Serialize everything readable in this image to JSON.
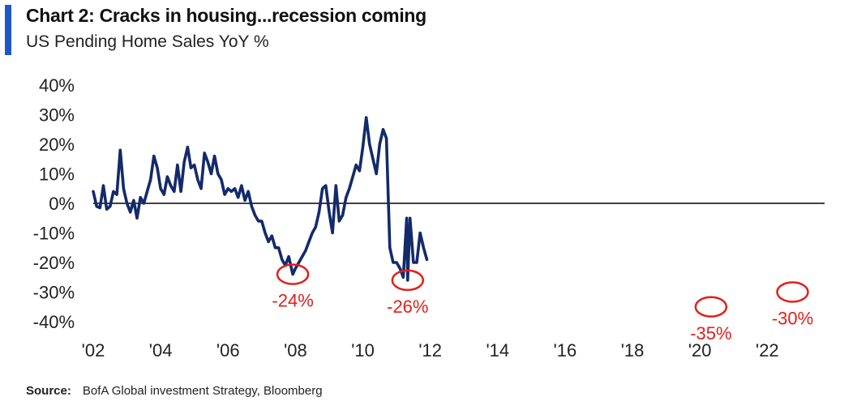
{
  "header": {
    "title": "Chart 2: Cracks in housing...recession coming",
    "subtitle": "US Pending Home Sales YoY %"
  },
  "footer": {
    "source_label": "Source:",
    "source_text": "BofA Global investment Strategy, Bloomberg"
  },
  "chart_data": {
    "type": "line",
    "title": "Chart 2: Cracks in housing...recession coming",
    "subtitle": "US Pending Home Sales YoY %",
    "xlabel": "",
    "ylabel": "",
    "xlim": [
      2002.0,
      2023.7
    ],
    "ylim": [
      -40,
      40
    ],
    "grid": false,
    "zero_line": true,
    "line_color": "#132a6b",
    "annotation_color": "#e0201b",
    "x_ticks": [
      {
        "value": 2002,
        "label": "'02"
      },
      {
        "value": 2004,
        "label": "'04"
      },
      {
        "value": 2006,
        "label": "'06"
      },
      {
        "value": 2008,
        "label": "'08"
      },
      {
        "value": 2010,
        "label": "'10"
      },
      {
        "value": 2012,
        "label": "'12"
      },
      {
        "value": 2014,
        "label": "'14"
      },
      {
        "value": 2016,
        "label": "'16"
      },
      {
        "value": 2018,
        "label": "'18"
      },
      {
        "value": 2020,
        "label": "'20"
      },
      {
        "value": 2022,
        "label": "'22"
      }
    ],
    "y_ticks": [
      {
        "value": 40,
        "label": "40%"
      },
      {
        "value": 30,
        "label": "30%"
      },
      {
        "value": 20,
        "label": "20%"
      },
      {
        "value": 10,
        "label": "10%"
      },
      {
        "value": 0,
        "label": "0%"
      },
      {
        "value": -10,
        "label": "-10%"
      },
      {
        "value": -20,
        "label": "-20%"
      },
      {
        "value": -30,
        "label": "-30%"
      },
      {
        "value": -40,
        "label": "-40%"
      }
    ],
    "annotations": [
      {
        "x": 2007.92,
        "y": -24,
        "label": "-24%"
      },
      {
        "x": 2011.33,
        "y": -26,
        "label": "-26%"
      },
      {
        "x": 2020.33,
        "y": -35,
        "label": "-35%"
      },
      {
        "x": 2022.75,
        "y": -30,
        "label": "-30%"
      }
    ],
    "series": [
      {
        "values": [
          [
            2002.0,
            4
          ],
          [
            2002.1,
            -1
          ],
          [
            2002.2,
            -1.5
          ],
          [
            2002.3,
            6
          ],
          [
            2002.4,
            -2
          ],
          [
            2002.5,
            -1
          ],
          [
            2002.6,
            4
          ],
          [
            2002.7,
            3
          ],
          [
            2002.8,
            18
          ],
          [
            2002.9,
            5
          ],
          [
            2003.0,
            0
          ],
          [
            2003.1,
            -3
          ],
          [
            2003.2,
            1
          ],
          [
            2003.3,
            -5
          ],
          [
            2003.4,
            2
          ],
          [
            2003.5,
            0
          ],
          [
            2003.6,
            4
          ],
          [
            2003.7,
            8
          ],
          [
            2003.8,
            16
          ],
          [
            2003.9,
            12
          ],
          [
            2004.0,
            5
          ],
          [
            2004.1,
            3
          ],
          [
            2004.2,
            9
          ],
          [
            2004.3,
            6
          ],
          [
            2004.4,
            4
          ],
          [
            2004.5,
            13
          ],
          [
            2004.6,
            4
          ],
          [
            2004.7,
            14
          ],
          [
            2004.8,
            19
          ],
          [
            2004.9,
            12
          ],
          [
            2005.0,
            13
          ],
          [
            2005.1,
            8
          ],
          [
            2005.2,
            5
          ],
          [
            2005.3,
            17
          ],
          [
            2005.4,
            14
          ],
          [
            2005.5,
            10
          ],
          [
            2005.6,
            16
          ],
          [
            2005.7,
            10
          ],
          [
            2005.8,
            8
          ],
          [
            2005.9,
            3
          ],
          [
            2006.0,
            5
          ],
          [
            2006.1,
            4
          ],
          [
            2006.2,
            5
          ],
          [
            2006.3,
            2
          ],
          [
            2006.4,
            6
          ],
          [
            2006.5,
            1
          ],
          [
            2006.6,
            4
          ],
          [
            2006.7,
            -1
          ],
          [
            2006.8,
            -4
          ],
          [
            2006.9,
            -6
          ],
          [
            2007.0,
            -6
          ],
          [
            2007.1,
            -10
          ],
          [
            2007.2,
            -13
          ],
          [
            2007.3,
            -11
          ],
          [
            2007.4,
            -15
          ],
          [
            2007.5,
            -15
          ],
          [
            2007.6,
            -19
          ],
          [
            2007.7,
            -21
          ],
          [
            2007.8,
            -18
          ],
          [
            2007.92,
            -24
          ],
          [
            2008.0,
            -22
          ],
          [
            2008.1,
            -20
          ],
          [
            2008.2,
            -18
          ],
          [
            2008.3,
            -16
          ],
          [
            2008.4,
            -13
          ],
          [
            2008.5,
            -10
          ],
          [
            2008.6,
            -8
          ],
          [
            2008.7,
            -3
          ],
          [
            2008.8,
            5
          ],
          [
            2008.9,
            6
          ],
          [
            2009.0,
            -3
          ],
          [
            2009.1,
            -10
          ],
          [
            2009.2,
            6
          ],
          [
            2009.3,
            -6
          ],
          [
            2009.4,
            -4
          ],
          [
            2009.5,
            2
          ],
          [
            2009.6,
            5
          ],
          [
            2009.7,
            9
          ],
          [
            2009.8,
            13
          ],
          [
            2009.9,
            11
          ],
          [
            2010.0,
            19
          ],
          [
            2010.1,
            29
          ],
          [
            2010.2,
            20
          ],
          [
            2010.3,
            15
          ],
          [
            2010.4,
            10
          ],
          [
            2010.5,
            20
          ],
          [
            2010.6,
            25
          ],
          [
            2010.7,
            22
          ],
          [
            2010.8,
            -15
          ],
          [
            2010.9,
            -20
          ],
          [
            2011.0,
            -20
          ],
          [
            2011.1,
            -22
          ],
          [
            2011.2,
            -25
          ],
          [
            2011.3,
            -5
          ],
          [
            2011.4,
            -5
          ],
          [
            2011.5,
            -20
          ],
          [
            2011.6,
            -20
          ],
          [
            2011.7,
            -10
          ],
          [
            2011.8,
            -15
          ],
          [
            2011.9,
            -19
          ],
          [
            2011.33,
            -26
          ]
        ]
      }
    ]
  }
}
